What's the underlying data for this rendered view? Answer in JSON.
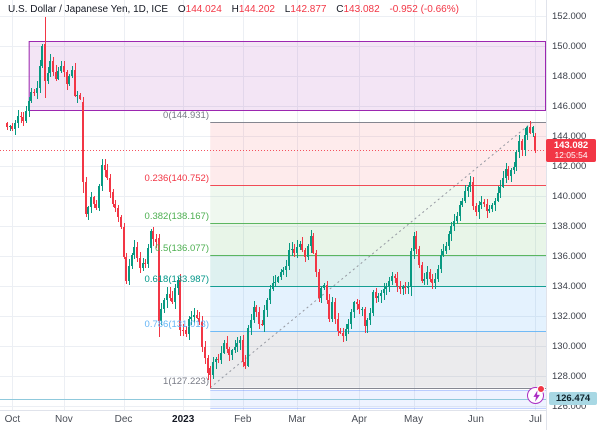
{
  "header": {
    "title": "U.S. Dollar / Japanese Yen, 1D, ICE",
    "ohlc": [
      {
        "k": "O",
        "v": "144.024"
      },
      {
        "k": "H",
        "v": "144.202"
      },
      {
        "k": "L",
        "v": "142.877"
      },
      {
        "k": "C",
        "v": "143.082"
      }
    ],
    "change": "-0.952 (-0.66%)"
  },
  "price_axis": {
    "ticks": [
      {
        "price": 152,
        "label": "152.000"
      },
      {
        "price": 150,
        "label": "150.000"
      },
      {
        "price": 148,
        "label": "148.000"
      },
      {
        "price": 146,
        "label": "146.000"
      },
      {
        "price": 144,
        "label": "144.000"
      },
      {
        "price": 142,
        "label": "142.000"
      },
      {
        "price": 140,
        "label": "140.000"
      },
      {
        "price": 138,
        "label": "138.000"
      },
      {
        "price": 136,
        "label": "136.000"
      },
      {
        "price": 134,
        "label": "134.000"
      },
      {
        "price": 132,
        "label": "132.000"
      },
      {
        "price": 130,
        "label": "130.000"
      },
      {
        "price": 128,
        "label": "128.000"
      },
      {
        "price": 126,
        "label": "126.000"
      }
    ],
    "last": {
      "label": "143.082",
      "countdown": "12:05:54",
      "bg": "#f23645"
    },
    "alert": {
      "label": "126.474",
      "price": 126.474,
      "bg": "#a8d8e4"
    }
  },
  "time_axis": {
    "months": [
      {
        "label": "Oct",
        "day": 2,
        "bold": false
      },
      {
        "label": "Nov",
        "day": 21,
        "bold": false
      },
      {
        "label": "Dec",
        "day": 43,
        "bold": false
      },
      {
        "label": "2023",
        "day": 65,
        "bold": true
      },
      {
        "label": "Feb",
        "day": 87,
        "bold": false
      },
      {
        "label": "Mar",
        "day": 107,
        "bold": false
      },
      {
        "label": "Apr",
        "day": 130,
        "bold": false
      },
      {
        "label": "May",
        "day": 150,
        "bold": false
      },
      {
        "label": "Jun",
        "day": 173,
        "bold": false
      },
      {
        "label": "Jul",
        "day": 195,
        "bold": false
      }
    ]
  },
  "chart_data": {
    "type": "candlestick",
    "title": "U.S. Dollar / Japanese Yen, 1D, ICE",
    "symbol": "USD/JPY",
    "interval": "1D",
    "exchange": "ICE",
    "ylim": [
      126,
      152
    ],
    "grid": true,
    "days": 196,
    "colors": {
      "up": "#089981",
      "down": "#f23645",
      "grid": "#eceff4",
      "bg": "#ffffff",
      "axis_border": "#e0e3eb"
    },
    "anchors": [
      [
        0,
        144.6
      ],
      [
        2,
        144.5
      ],
      [
        4,
        145.3
      ],
      [
        6,
        145.0
      ],
      [
        7,
        145.7
      ],
      [
        9,
        146.9
      ],
      [
        11,
        147.2
      ],
      [
        13,
        150.0
      ],
      [
        14,
        147.6
      ],
      [
        16,
        149.0
      ],
      [
        18,
        147.8
      ],
      [
        20,
        148.7
      ],
      [
        22,
        147.5
      ],
      [
        24,
        148.4
      ],
      [
        25,
        146.7
      ],
      [
        27,
        146.5
      ],
      [
        28,
        140.9
      ],
      [
        29,
        138.8
      ],
      [
        31,
        139.9
      ],
      [
        33,
        139.2
      ],
      [
        35,
        142.1
      ],
      [
        37,
        141.2
      ],
      [
        39,
        139.5
      ],
      [
        41,
        138.6
      ],
      [
        42,
        137.9
      ],
      [
        44,
        134.3
      ],
      [
        45,
        135.3
      ],
      [
        47,
        136.6
      ],
      [
        49,
        135.2
      ],
      [
        51,
        135.5
      ],
      [
        53,
        137.7
      ],
      [
        55,
        136.9
      ],
      [
        56,
        131.7
      ],
      [
        57,
        132.5
      ],
      [
        59,
        133.5
      ],
      [
        61,
        132.9
      ],
      [
        63,
        134.4
      ],
      [
        64,
        131.1
      ],
      [
        66,
        130.8
      ],
      [
        67,
        131.8
      ],
      [
        69,
        132.1
      ],
      [
        71,
        131.6
      ],
      [
        72,
        129.9
      ],
      [
        73,
        129.2
      ],
      [
        74,
        128.2
      ],
      [
        75,
        128.1
      ],
      [
        76,
        128.9
      ],
      [
        78,
        129.1
      ],
      [
        80,
        130.2
      ],
      [
        82,
        129.4
      ],
      [
        84,
        129.9
      ],
      [
        86,
        130.4
      ],
      [
        87,
        128.9
      ],
      [
        88,
        128.7
      ],
      [
        89,
        131.2
      ],
      [
        91,
        132.6
      ],
      [
        93,
        131.5
      ],
      [
        94,
        131.4
      ],
      [
        96,
        133.1
      ],
      [
        98,
        134.2
      ],
      [
        100,
        134.6
      ],
      [
        101,
        134.9
      ],
      [
        103,
        135.3
      ],
      [
        104,
        136.4
      ],
      [
        106,
        136.2
      ],
      [
        108,
        136.8
      ],
      [
        110,
        135.9
      ],
      [
        112,
        137.3
      ],
      [
        113,
        136.2
      ],
      [
        114,
        134.9
      ],
      [
        115,
        133.2
      ],
      [
        117,
        134.1
      ],
      [
        119,
        131.8
      ],
      [
        120,
        132.9
      ],
      [
        122,
        131.0
      ],
      [
        124,
        130.7
      ],
      [
        126,
        131.5
      ],
      [
        128,
        132.9
      ],
      [
        129,
        132.8
      ],
      [
        131,
        132.5
      ],
      [
        132,
        131.3
      ],
      [
        134,
        132.2
      ],
      [
        135,
        133.6
      ],
      [
        137,
        133.3
      ],
      [
        139,
        133.8
      ],
      [
        141,
        134.3
      ],
      [
        142,
        134.7
      ],
      [
        144,
        134.0
      ],
      [
        146,
        133.9
      ],
      [
        148,
        133.9
      ],
      [
        149,
        136.3
      ],
      [
        150,
        137.3
      ],
      [
        151,
        136.5
      ],
      [
        153,
        134.3
      ],
      [
        155,
        134.9
      ],
      [
        157,
        134.2
      ],
      [
        158,
        134.5
      ],
      [
        160,
        136.1
      ],
      [
        162,
        136.7
      ],
      [
        164,
        138.0
      ],
      [
        166,
        138.7
      ],
      [
        168,
        139.7
      ],
      [
        170,
        140.6
      ],
      [
        171,
        140.9
      ],
      [
        172,
        139.3
      ],
      [
        173,
        138.9
      ],
      [
        175,
        139.6
      ],
      [
        177,
        139.0
      ],
      [
        179,
        139.4
      ],
      [
        181,
        140.2
      ],
      [
        183,
        141.2
      ],
      [
        184,
        141.8
      ],
      [
        185,
        141.3
      ],
      [
        187,
        141.9
      ],
      [
        188,
        142.9
      ],
      [
        189,
        143.7
      ],
      [
        190,
        143.1
      ],
      [
        191,
        144.1
      ],
      [
        192,
        144.6
      ],
      [
        193,
        144.2
      ],
      [
        194,
        144.6
      ],
      [
        195,
        143.082
      ]
    ],
    "overrides": {
      "14": {
        "o": 150.15,
        "h": 151.94,
        "l": 146.53,
        "c": 147.64
      },
      "28": {
        "o": 146.25,
        "h": 146.58,
        "l": 140.2,
        "c": 140.9
      },
      "56": {
        "o": 137.2,
        "h": 137.45,
        "l": 130.6,
        "c": 131.7
      },
      "75": {
        "o": 128.55,
        "h": 128.65,
        "l": 127.223,
        "c": 128.1
      },
      "149": {
        "o": 133.9,
        "h": 136.55,
        "l": 133.35,
        "c": 136.3
      },
      "195": {
        "o": 144.024,
        "h": 144.202,
        "l": 142.877,
        "c": 143.082
      }
    },
    "last_ohlc": {
      "o": 144.024,
      "h": 144.202,
      "l": 142.877,
      "c": 143.082,
      "change": -0.952,
      "change_pct": -0.66
    },
    "fib": {
      "start_day": 75,
      "label_right_x": 209,
      "levels": [
        {
          "ratio": 0,
          "price": 144.931,
          "label": "0(144.931)",
          "color": "#787b86"
        },
        {
          "ratio": 0.236,
          "price": 140.752,
          "label": "0.236(140.752)",
          "color": "#f23645"
        },
        {
          "ratio": 0.382,
          "price": 138.167,
          "label": "0.382(138.167)",
          "color": "#4caf50"
        },
        {
          "ratio": 0.5,
          "price": 136.077,
          "label": "0.5(136.077)",
          "color": "#4caf50"
        },
        {
          "ratio": 0.618,
          "price": 133.987,
          "label": "0.618(133.987)",
          "color": "#009688"
        },
        {
          "ratio": 0.786,
          "price": 131.013,
          "label": "0.786(131.013)",
          "color": "#64b5f6"
        },
        {
          "ratio": 1,
          "price": 127.223,
          "label": "1(127.223)",
          "color": "#787b86"
        }
      ],
      "band_fills": [
        "rgba(242,54,69,0.10)",
        "rgba(76,175,80,0.09)",
        "rgba(76,175,80,0.13)",
        "rgba(0,150,136,0.13)",
        "rgba(33,150,243,0.12)",
        "rgba(120,123,134,0.15)"
      ]
    },
    "rectangle": {
      "start_day": 8,
      "price_top": 150.3,
      "price_bottom": 145.73,
      "fill": "rgba(156,39,176,0.12)",
      "stroke": "#9c27b0"
    },
    "support_zone": {
      "start_day": 75,
      "price_top": 127.05,
      "price_bottom": 125.85,
      "fill": "rgba(41,98,255,0.08)",
      "border": "rgba(41,98,255,0.28)"
    },
    "hline": {
      "price": 126.474,
      "color": "#8fc9dc"
    },
    "price_line": {
      "price": 143.082,
      "color": "#f23645"
    },
    "trendline": {
      "from_day": 75,
      "from_price": 127.223,
      "to_day": 194,
      "to_price": 144.95,
      "color": "#9598a1"
    }
  }
}
